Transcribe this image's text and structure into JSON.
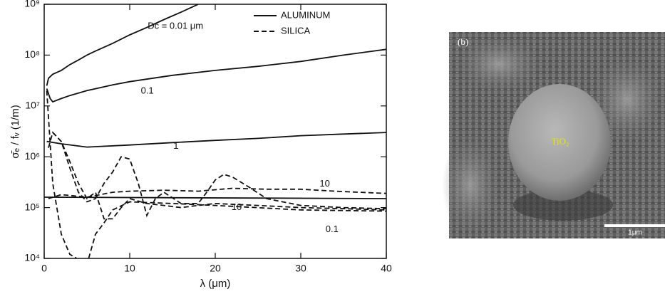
{
  "chart_data": {
    "type": "line",
    "log_y": true,
    "ylabel": "σ̄ₑ / fᵥ (1/m)",
    "xlabel": "λ (μm)",
    "xlim": [
      0,
      40
    ],
    "xticks": [
      0,
      10,
      20,
      30,
      40
    ],
    "ylim": [
      10000,
      1000000000
    ],
    "yticks": [
      {
        "value": 10000,
        "label": "10⁴"
      },
      {
        "value": 100000,
        "label": "10⁵"
      },
      {
        "value": 1000000,
        "label": "10⁶"
      },
      {
        "value": 10000000,
        "label": "10⁷"
      },
      {
        "value": 100000000,
        "label": "10⁸"
      },
      {
        "value": 1000000000,
        "label": "10⁹"
      }
    ],
    "legend": [
      {
        "name": "ALUMINUM",
        "dash": "solid"
      },
      {
        "name": "SILICA",
        "dash": "dashed"
      }
    ],
    "series": [
      {
        "dash": "solid",
        "color": "#111111",
        "x": [
          0.3,
          0.5,
          1,
          2,
          3,
          4,
          5,
          6,
          8,
          10,
          12,
          14,
          16,
          18
        ],
        "values": [
          25000000,
          35000000,
          42000000,
          50000000,
          65000000,
          80000000,
          100000000,
          120000000,
          170000000,
          250000000,
          350000000,
          500000000,
          700000000,
          1000000000
        ]
      },
      {
        "dash": "solid",
        "color": "#111111",
        "x": [
          0.3,
          0.7,
          1,
          2,
          3,
          5,
          8,
          10,
          15,
          20,
          25,
          30,
          35,
          40
        ],
        "values": [
          22000000,
          14000000,
          12000000,
          14000000,
          16000000,
          20000000,
          26000000,
          30000000,
          40000000,
          50000000,
          60000000,
          75000000,
          100000000,
          130000000
        ]
      },
      {
        "dash": "solid",
        "color": "#111111",
        "x": [
          0.3,
          2,
          5,
          10,
          15,
          20,
          25,
          30,
          35,
          40
        ],
        "values": [
          2000000,
          1800000,
          1550000,
          1700000,
          1900000,
          2100000,
          2300000,
          2600000,
          2800000,
          3000000
        ]
      },
      {
        "dash": "solid",
        "color": "#111111",
        "x": [
          0,
          40
        ],
        "values": [
          160000,
          150000
        ]
      },
      {
        "dash": "dashed",
        "color": "#111111",
        "x": [
          0.3,
          1,
          2,
          3,
          3.8,
          4.5,
          5.2,
          6,
          7,
          8,
          10,
          15,
          20,
          30,
          40
        ],
        "values": [
          20000000,
          300000,
          30000,
          12000,
          10000,
          null,
          10000,
          30000,
          50000,
          90000,
          130000,
          120000,
          110000,
          90000,
          85000
        ]
      },
      {
        "dash": "dashed",
        "color": "#111111",
        "x": [
          1,
          2,
          3,
          4,
          5,
          6,
          7,
          8,
          9,
          10,
          12,
          14,
          16,
          18,
          20,
          25,
          30,
          35,
          40
        ],
        "values": [
          3000000,
          2000000,
          800000,
          300000,
          150000,
          200000,
          60000,
          60000,
          100000,
          150000,
          120000,
          110000,
          100000,
          110000,
          120000,
          110000,
          100000,
          95000,
          90000
        ]
      },
      {
        "dash": "dashed",
        "color": "#111111",
        "x": [
          0.5,
          1,
          2,
          3,
          4,
          5,
          6,
          7,
          8,
          9,
          10,
          11,
          12,
          13,
          14,
          16,
          18,
          19,
          20,
          21,
          22,
          24,
          26,
          30,
          35,
          40
        ],
        "values": [
          1500000,
          3000000,
          2000000,
          600000,
          200000,
          130000,
          150000,
          300000,
          500000,
          1000000,
          900000,
          300000,
          70000,
          150000,
          200000,
          120000,
          120000,
          200000,
          350000,
          450000,
          400000,
          250000,
          150000,
          110000,
          100000,
          95000
        ]
      },
      {
        "dash": "dashed",
        "color": "#111111",
        "x": [
          0.5,
          2,
          5,
          8,
          10,
          14,
          18,
          22,
          26,
          30,
          34,
          40
        ],
        "values": [
          150000,
          180000,
          160000,
          200000,
          210000,
          220000,
          210000,
          240000,
          230000,
          230000,
          210000,
          190000
        ]
      }
    ],
    "annotations": [
      {
        "text": "Dc = 0.01 μm",
        "x": 12.1,
        "y": 370000000
      },
      {
        "text": "0.1",
        "x": 11.3,
        "y": 19500000
      },
      {
        "text": "1",
        "x": 15.1,
        "y": 1600000
      },
      {
        "text": "10",
        "x": 32.2,
        "y": 290000
      },
      {
        "text": "10",
        "x": 21.9,
        "y": 100000
      },
      {
        "text": "0.1",
        "x": 32.9,
        "y": 37000
      }
    ]
  },
  "image": {
    "panel_label": "(b)",
    "particle_label": "TiO₂",
    "scale_bar": "1μm"
  }
}
